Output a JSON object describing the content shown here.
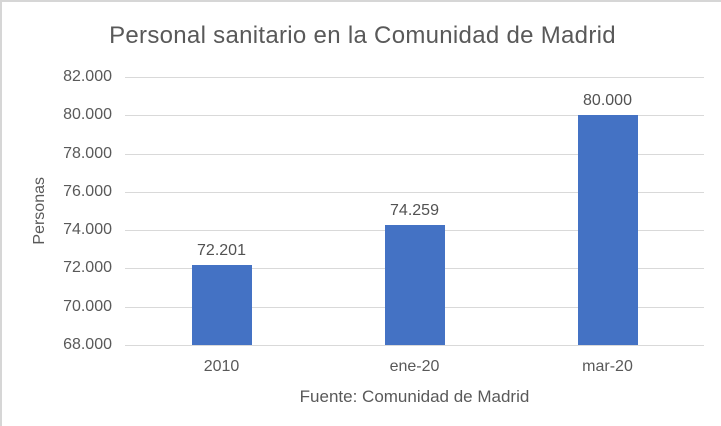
{
  "frame": {
    "background": "#ffffff",
    "border_color": "#d6d6d6"
  },
  "chart_data": {
    "type": "bar",
    "title": "Personal sanitario en la Comunidad de Madrid",
    "categories": [
      "2010",
      "ene-20",
      "mar-20"
    ],
    "values": [
      72201,
      74259,
      80000
    ],
    "data_labels": [
      "72.201",
      "74.259",
      "80.000"
    ],
    "xlabel": "Fuente: Comunidad de Madrid",
    "ylabel": "Personas",
    "ylim": [
      68000,
      82000
    ],
    "ytick_step": 2000,
    "ytick_labels": [
      "68.000",
      "70.000",
      "72.000",
      "74.000",
      "76.000",
      "78.000",
      "80.000",
      "82.000"
    ],
    "grid": true,
    "legend": "none",
    "colors": {
      "bar": "#4472c4",
      "gridline": "#d9d9d9",
      "text": "#595959"
    }
  }
}
